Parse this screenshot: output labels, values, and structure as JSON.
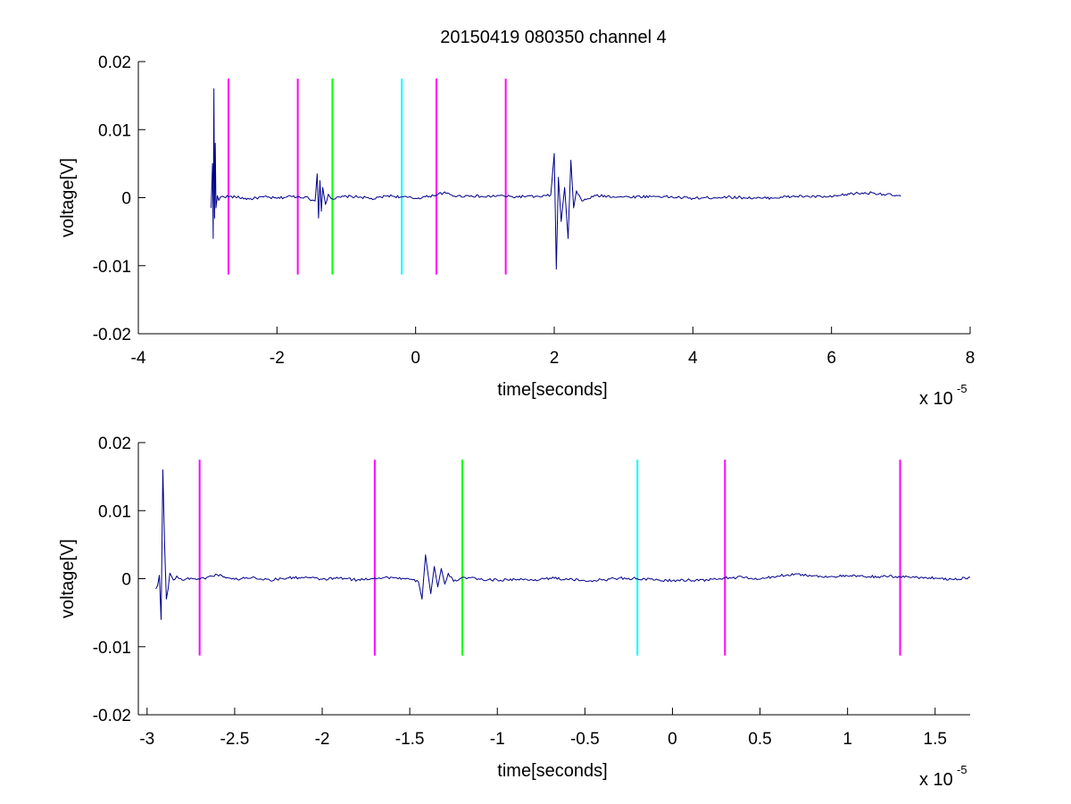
{
  "figure": {
    "title": "20150419 080350 channel 4"
  },
  "chart_data": [
    {
      "type": "line",
      "title": "20150419 080350 channel 4",
      "xlabel": "time[seconds]",
      "ylabel": "voltage[V]",
      "x_exponent_label": "x 10",
      "x_exponent_power": "-5",
      "xlim": [
        -4,
        8
      ],
      "ylim": [
        -0.02,
        0.02
      ],
      "xticks": [
        -4,
        -2,
        0,
        2,
        4,
        6,
        8
      ],
      "xtick_labels": [
        "-4",
        "-2",
        "0",
        "2",
        "4",
        "6",
        "8"
      ],
      "yticks": [
        -0.02,
        -0.01,
        0,
        0.01,
        0.02
      ],
      "ytick_labels": [
        "-0.02",
        "-0.01",
        "0",
        "0.01",
        "0.02"
      ],
      "grid": false,
      "series": [
        {
          "color": "#00008b",
          "x": [
            -2.95,
            -2.93,
            -2.92,
            -2.91,
            -2.9,
            -2.89,
            -2.88,
            -2.86,
            -2.84,
            -2.8,
            -2.6,
            -2.4,
            -2.2,
            -2.0,
            -1.8,
            -1.6,
            -1.45,
            -1.42,
            -1.4,
            -1.38,
            -1.36,
            -1.34,
            -1.3,
            -1.26,
            -1.2,
            -1.0,
            -0.8,
            -0.6,
            -0.4,
            -0.2,
            0.0,
            0.2,
            0.4,
            0.6,
            0.8,
            1.0,
            1.2,
            1.4,
            1.6,
            1.8,
            1.95,
            2.0,
            2.03,
            2.06,
            2.1,
            2.15,
            2.2,
            2.24,
            2.28,
            2.32,
            2.4,
            2.6,
            3.0,
            3.5,
            4.0,
            4.5,
            5.0,
            5.5,
            6.0,
            6.3,
            6.6,
            7.0
          ],
          "y": [
            -0.0015,
            0.005,
            -0.006,
            0.016,
            -0.003,
            0.008,
            -0.0015,
            0.0003,
            -0.0004,
            0.0002,
            0.0001,
            -0.0002,
            0.0001,
            -0.0001,
            0.0002,
            0.0001,
            -0.0005,
            0.0035,
            -0.003,
            0.0025,
            -0.002,
            0.0015,
            -0.001,
            0.0005,
            -0.0002,
            0.0002,
            0.0001,
            -0.0002,
            0.0003,
            0.0001,
            -0.0001,
            0.0002,
            0.0007,
            0.0002,
            0.0003,
            0.0001,
            0.0003,
            0.0001,
            0.0002,
            0.0001,
            0.0004,
            0.0065,
            -0.0105,
            0.003,
            -0.0035,
            0.0015,
            -0.006,
            0.0055,
            -0.0015,
            0.001,
            -0.0005,
            0.0003,
            0.0001,
            0.0002,
            -0.0001,
            0.0001,
            -0.0001,
            0.0002,
            0.0001,
            0.0006,
            0.0007,
            0.0002
          ],
          "noise": 0.0004
        }
      ],
      "vertical_lines": [
        {
          "x": -2.7,
          "color": "#ff00ff",
          "y0": -0.0113,
          "y1": 0.0175
        },
        {
          "x": -1.7,
          "color": "#ff00ff",
          "y0": -0.0113,
          "y1": 0.0175
        },
        {
          "x": -1.2,
          "color": "#00ff00",
          "y0": -0.0113,
          "y1": 0.0175
        },
        {
          "x": -0.2,
          "color": "#00ffff",
          "y0": -0.0113,
          "y1": 0.0175
        },
        {
          "x": 0.3,
          "color": "#ff00ff",
          "y0": -0.0113,
          "y1": 0.0175
        },
        {
          "x": 1.3,
          "color": "#ff00ff",
          "y0": -0.0113,
          "y1": 0.0175
        }
      ]
    },
    {
      "type": "line",
      "title": "",
      "xlabel": "time[seconds]",
      "ylabel": "voltage[V]",
      "x_exponent_label": "x 10",
      "x_exponent_power": "-5",
      "xlim": [
        -3.05,
        1.7
      ],
      "ylim": [
        -0.02,
        0.02
      ],
      "xticks": [
        -3,
        -2.5,
        -2,
        -1.5,
        -1,
        -0.5,
        0,
        0.5,
        1,
        1.5
      ],
      "xtick_labels": [
        "-3",
        "-2.5",
        "-2",
        "-1.5",
        "-1",
        "-0.5",
        "0",
        "0.5",
        "1",
        "1.5"
      ],
      "yticks": [
        -0.02,
        -0.01,
        0,
        0.01,
        0.02
      ],
      "ytick_labels": [
        "-0.02",
        "-0.01",
        "0",
        "0.01",
        "0.02"
      ],
      "grid": false,
      "series": [
        {
          "color": "#00008b",
          "x": [
            -2.95,
            -2.94,
            -2.93,
            -2.92,
            -2.91,
            -2.9,
            -2.89,
            -2.88,
            -2.87,
            -2.85,
            -2.83,
            -2.8,
            -2.75,
            -2.7,
            -2.6,
            -2.5,
            -2.4,
            -2.3,
            -2.2,
            -2.1,
            -2.0,
            -1.9,
            -1.8,
            -1.7,
            -1.6,
            -1.5,
            -1.45,
            -1.43,
            -1.41,
            -1.4,
            -1.38,
            -1.36,
            -1.34,
            -1.32,
            -1.3,
            -1.28,
            -1.25,
            -1.2,
            -1.1,
            -1.0,
            -0.9,
            -0.8,
            -0.7,
            -0.6,
            -0.5,
            -0.4,
            -0.3,
            -0.2,
            -0.1,
            0.0,
            0.1,
            0.2,
            0.3,
            0.4,
            0.5,
            0.6,
            0.7,
            0.8,
            0.9,
            1.0,
            1.1,
            1.2,
            1.3,
            1.4,
            1.5,
            1.6,
            1.7
          ],
          "y": [
            -0.0015,
            -0.001,
            0.0005,
            -0.006,
            0.016,
            0.005,
            -0.003,
            -0.0015,
            0.0008,
            -0.0002,
            0.0004,
            -0.0002,
            0.0001,
            -0.0001,
            0.0006,
            -0.0001,
            0.0002,
            -0.0002,
            0.0001,
            0.0002,
            -0.0001,
            0.0001,
            -0.0002,
            0.0001,
            0.0002,
            -0.0001,
            -0.0005,
            -0.003,
            0.0035,
            0.0015,
            -0.0022,
            0.0018,
            -0.0012,
            0.0015,
            -0.0008,
            0.0008,
            -0.0004,
            0.0002,
            -0.0001,
            -0.0002,
            -0.0001,
            -0.0002,
            0.0001,
            -0.0001,
            -0.0003,
            -0.0002,
            0.0001,
            0.0,
            -0.0002,
            -0.0003,
            -0.0002,
            -0.0002,
            0.0001,
            0.0002,
            -0.0001,
            0.0004,
            0.0007,
            0.0004,
            0.0003,
            0.0004,
            0.0003,
            0.0003,
            0.0003,
            0.0002,
            0.0001,
            -0.0001,
            0.0002
          ],
          "noise": 0.0004
        }
      ],
      "vertical_lines": [
        {
          "x": -2.7,
          "color": "#ff00ff",
          "y0": -0.0113,
          "y1": 0.0175
        },
        {
          "x": -1.7,
          "color": "#ff00ff",
          "y0": -0.0113,
          "y1": 0.0175
        },
        {
          "x": -1.2,
          "color": "#00ff00",
          "y0": -0.0113,
          "y1": 0.0175
        },
        {
          "x": -0.2,
          "color": "#00ffff",
          "y0": -0.0113,
          "y1": 0.0175
        },
        {
          "x": 0.3,
          "color": "#ff00ff",
          "y0": -0.0113,
          "y1": 0.0175
        },
        {
          "x": 1.3,
          "color": "#ff00ff",
          "y0": -0.0113,
          "y1": 0.0175
        }
      ]
    }
  ]
}
